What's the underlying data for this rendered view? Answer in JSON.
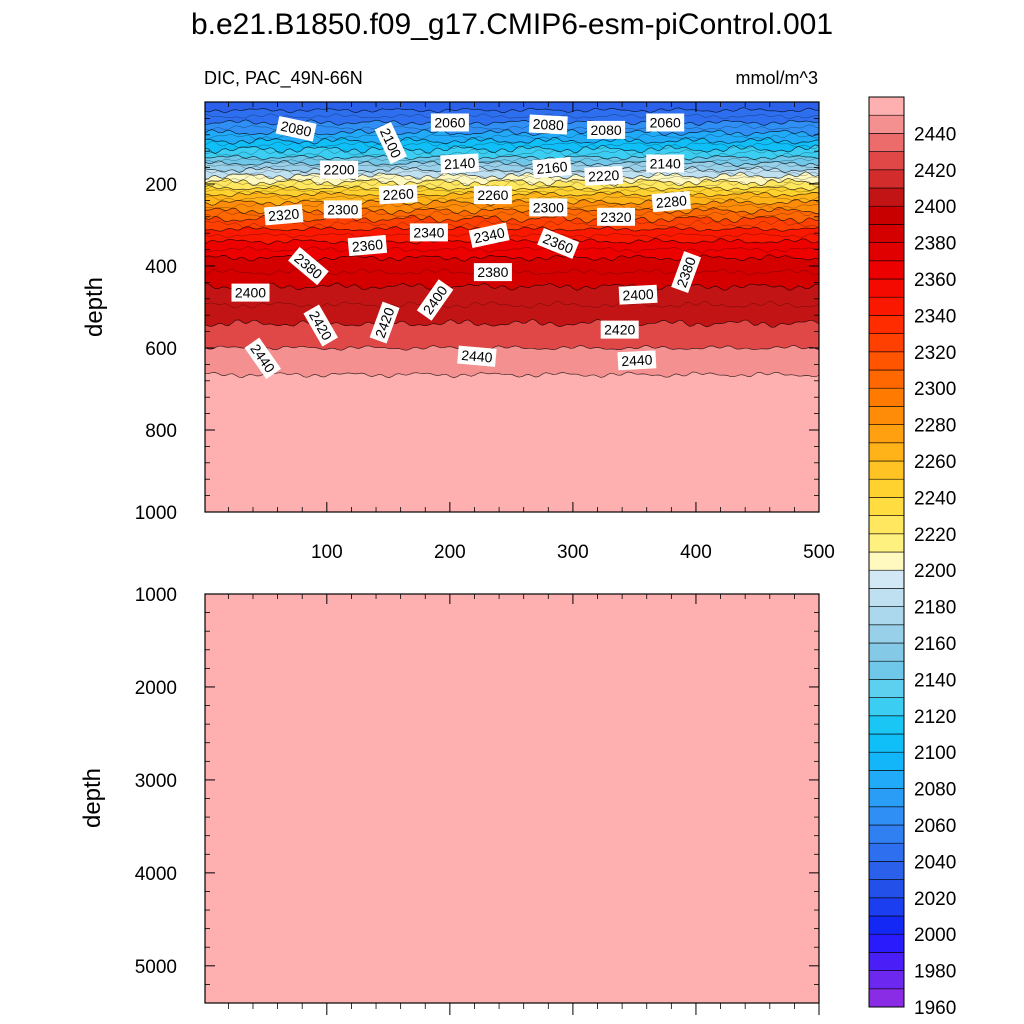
{
  "chart_data": [
    {
      "type": "contour",
      "title": "b.e21.B1850.f09_g17.CMIP6-esm-piControl.001",
      "left_label": "DIC, PAC_49N-66N",
      "units": "mmol/m^3",
      "xlabel": "",
      "ylabel": "depth",
      "xlim": [
        1,
        500
      ],
      "ylim": [
        1000,
        0
      ],
      "x_ticks": [
        100,
        200,
        300,
        400,
        500
      ],
      "y_ticks": [
        200,
        400,
        600,
        800,
        1000
      ],
      "contour_depth_profile": [
        {
          "value": 2040,
          "depth": 20
        },
        {
          "value": 2060,
          "depth": 50
        },
        {
          "value": 2080,
          "depth": 75
        },
        {
          "value": 2100,
          "depth": 95
        },
        {
          "value": 2120,
          "depth": 115
        },
        {
          "value": 2140,
          "depth": 135
        },
        {
          "value": 2160,
          "depth": 150
        },
        {
          "value": 2180,
          "depth": 165
        },
        {
          "value": 2200,
          "depth": 180
        },
        {
          "value": 2220,
          "depth": 195
        },
        {
          "value": 2240,
          "depth": 210
        },
        {
          "value": 2260,
          "depth": 225
        },
        {
          "value": 2280,
          "depth": 245
        },
        {
          "value": 2300,
          "depth": 265
        },
        {
          "value": 2320,
          "depth": 285
        },
        {
          "value": 2340,
          "depth": 310
        },
        {
          "value": 2360,
          "depth": 340
        },
        {
          "value": 2380,
          "depth": 380
        },
        {
          "value": 2400,
          "depth": 450
        },
        {
          "value": 2420,
          "depth": 540
        },
        {
          "value": 2440,
          "depth": 600
        },
        {
          "value": 2450,
          "depth": 665
        }
      ],
      "contour_labels": [
        {
          "text": "2080",
          "x": 75,
          "depth": 65,
          "angle": 12
        },
        {
          "text": "2100",
          "x": 152,
          "depth": 100,
          "angle": 65
        },
        {
          "text": "2060",
          "x": 200,
          "depth": 50,
          "angle": 0
        },
        {
          "text": "2080",
          "x": 280,
          "depth": 55,
          "angle": 3
        },
        {
          "text": "2080",
          "x": 327,
          "depth": 68,
          "angle": 0
        },
        {
          "text": "2060",
          "x": 375,
          "depth": 50,
          "angle": 0
        },
        {
          "text": "2200",
          "x": 110,
          "depth": 165,
          "angle": 0
        },
        {
          "text": "2140",
          "x": 208,
          "depth": 150,
          "angle": -3
        },
        {
          "text": "2160",
          "x": 283,
          "depth": 160,
          "angle": -5
        },
        {
          "text": "2220",
          "x": 325,
          "depth": 180,
          "angle": -3
        },
        {
          "text": "2140",
          "x": 375,
          "depth": 150,
          "angle": 0
        },
        {
          "text": "2260",
          "x": 158,
          "depth": 225,
          "angle": -3
        },
        {
          "text": "2260",
          "x": 235,
          "depth": 227,
          "angle": 0
        },
        {
          "text": "2320",
          "x": 65,
          "depth": 275,
          "angle": -5
        },
        {
          "text": "2300",
          "x": 113,
          "depth": 262,
          "angle": 0
        },
        {
          "text": "2300",
          "x": 280,
          "depth": 257,
          "angle": 0
        },
        {
          "text": "2320",
          "x": 335,
          "depth": 280,
          "angle": 0
        },
        {
          "text": "2280",
          "x": 380,
          "depth": 243,
          "angle": -5
        },
        {
          "text": "2360",
          "x": 133,
          "depth": 350,
          "angle": -5
        },
        {
          "text": "2340",
          "x": 183,
          "depth": 318,
          "angle": 0
        },
        {
          "text": "2340",
          "x": 232,
          "depth": 325,
          "angle": -12
        },
        {
          "text": "2360",
          "x": 288,
          "depth": 345,
          "angle": 22
        },
        {
          "text": "2380",
          "x": 85,
          "depth": 400,
          "angle": 40
        },
        {
          "text": "2380",
          "x": 235,
          "depth": 415,
          "angle": 0
        },
        {
          "text": "2380",
          "x": 392,
          "depth": 415,
          "angle": -70
        },
        {
          "text": "2400",
          "x": 38,
          "depth": 465,
          "angle": 0
        },
        {
          "text": "2400",
          "x": 188,
          "depth": 483,
          "angle": -55
        },
        {
          "text": "2400",
          "x": 353,
          "depth": 470,
          "angle": -3
        },
        {
          "text": "2420",
          "x": 95,
          "depth": 545,
          "angle": 60
        },
        {
          "text": "2420",
          "x": 147,
          "depth": 538,
          "angle": -70
        },
        {
          "text": "2420",
          "x": 338,
          "depth": 555,
          "angle": 0
        },
        {
          "text": "2440",
          "x": 48,
          "depth": 625,
          "angle": 55
        },
        {
          "text": "2440",
          "x": 222,
          "depth": 620,
          "angle": 5
        },
        {
          "text": "2440",
          "x": 352,
          "depth": 630,
          "angle": -3
        }
      ]
    },
    {
      "type": "contour",
      "title": "",
      "xlabel": "",
      "ylabel": "depth",
      "xlim": [
        1,
        500
      ],
      "ylim": [
        5400,
        1000
      ],
      "y_ticks": [
        1000,
        2000,
        3000,
        4000,
        5000
      ],
      "fill_color": "#feb0b0"
    },
    {
      "type": "colorbar",
      "levels": [
        1960,
        1970,
        1980,
        1990,
        2000,
        2010,
        2020,
        2030,
        2040,
        2050,
        2060,
        2070,
        2080,
        2090,
        2100,
        2110,
        2120,
        2130,
        2140,
        2150,
        2160,
        2170,
        2180,
        2190,
        2200,
        2210,
        2220,
        2230,
        2240,
        2250,
        2260,
        2270,
        2280,
        2290,
        2300,
        2310,
        2320,
        2330,
        2340,
        2350,
        2360,
        2370,
        2380,
        2390,
        2400,
        2410,
        2420,
        2430,
        2440,
        2450
      ],
      "labels": [
        1960,
        1980,
        2000,
        2020,
        2040,
        2060,
        2080,
        2100,
        2120,
        2140,
        2160,
        2180,
        2200,
        2220,
        2240,
        2260,
        2280,
        2300,
        2320,
        2340,
        2360,
        2380,
        2400,
        2420,
        2440
      ],
      "colors": [
        "#8a2be6",
        "#6d28f0",
        "#4a1ff7",
        "#2a1bfc",
        "#1428f5",
        "#1a3ef0",
        "#2450ea",
        "#2a60ea",
        "#2d6fef",
        "#3080f2",
        "#2f8ff4",
        "#2a9ef6",
        "#20aaf8",
        "#14b6fa",
        "#10bff8",
        "#1ac6f4",
        "#3ccef2",
        "#5dd0f0",
        "#6fc8ea",
        "#84c9e6",
        "#98d0ea",
        "#acd8ed",
        "#bee0f0",
        "#d2e8f4",
        "#fff9c0",
        "#fff180",
        "#ffe760",
        "#ffdd40",
        "#ffd230",
        "#ffc424",
        "#ffb318",
        "#ffa010",
        "#ff8c08",
        "#ff7a00",
        "#ff6800",
        "#ff5400",
        "#ff4000",
        "#ff2c00",
        "#fa1800",
        "#f40a00",
        "#ec0000",
        "#e00000",
        "#d40000",
        "#c80000",
        "#c21414",
        "#d22c2c",
        "#e04848",
        "#ec6c6c",
        "#f49090",
        "#feb0b0"
      ]
    }
  ]
}
